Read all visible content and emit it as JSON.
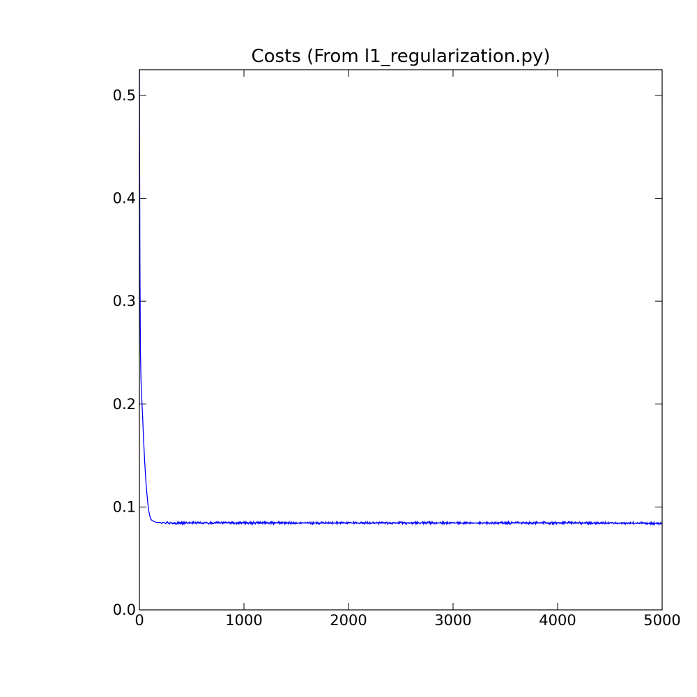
{
  "chart_data": {
    "type": "line",
    "title": "Costs (From l1_regularization.py)",
    "xlabel": "",
    "ylabel": "",
    "xlim": [
      0,
      5000
    ],
    "ylim": [
      0,
      0.525
    ],
    "xticks": [
      0,
      1000,
      2000,
      3000,
      4000,
      5000
    ],
    "xtick_labels": [
      "0",
      "1000",
      "2000",
      "3000",
      "4000",
      "5000"
    ],
    "yticks": [
      0.0,
      0.1,
      0.2,
      0.3,
      0.4,
      0.5
    ],
    "ytick_labels": [
      "0.0",
      "0.1",
      "0.2",
      "0.3",
      "0.4",
      "0.5"
    ],
    "grid": false,
    "legend": "none",
    "series": [
      {
        "color": "#0000ff",
        "x": [
          0,
          2,
          5,
          10,
          15,
          20,
          30,
          40,
          50,
          60,
          70,
          80,
          90,
          100,
          110,
          120,
          140,
          160,
          200,
          300,
          500,
          1000,
          1500,
          2000,
          2500,
          3000,
          3500,
          4000,
          4500,
          5000
        ],
        "y": [
          0.525,
          0.45,
          0.34,
          0.25,
          0.225,
          0.21,
          0.19,
          0.165,
          0.145,
          0.128,
          0.115,
          0.104,
          0.096,
          0.091,
          0.088,
          0.087,
          0.086,
          0.085,
          0.085,
          0.0845,
          0.0845,
          0.0845,
          0.0845,
          0.0845,
          0.0845,
          0.0845,
          0.0845,
          0.0845,
          0.0845,
          0.084
        ]
      }
    ]
  }
}
